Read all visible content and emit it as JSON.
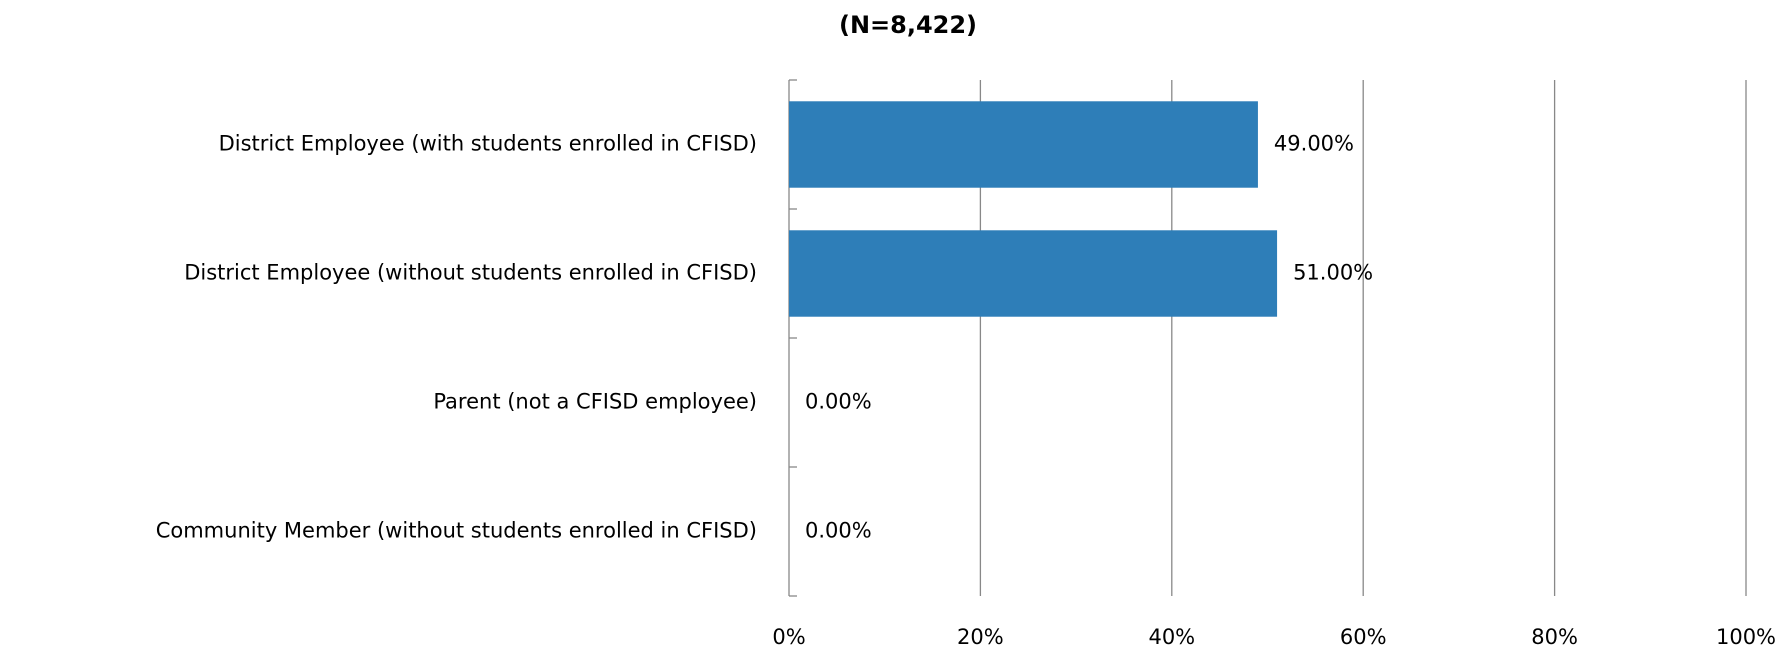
{
  "chart_data": {
    "type": "bar",
    "orientation": "horizontal",
    "title": "(N=8,422)",
    "categories": [
      "District Employee (with students enrolled in CFISD)",
      "District Employee (without students enrolled in CFISD)",
      "Parent (not a CFISD employee)",
      "Community Member (without students enrolled in CFISD)"
    ],
    "values": [
      49,
      51,
      0,
      0
    ],
    "value_labels": [
      "49.00%",
      "51.00%",
      "0.00%",
      "0.00%"
    ],
    "color": "#2e7eb8",
    "xlim": [
      0,
      100
    ],
    "xticks": [
      {
        "value": 0,
        "label": "0%"
      },
      {
        "value": 20,
        "label": "20%"
      },
      {
        "value": 40,
        "label": "40%"
      },
      {
        "value": 60,
        "label": "60%"
      },
      {
        "value": 80,
        "label": "80%"
      },
      {
        "value": 100,
        "label": "100%"
      }
    ],
    "grid": true
  }
}
